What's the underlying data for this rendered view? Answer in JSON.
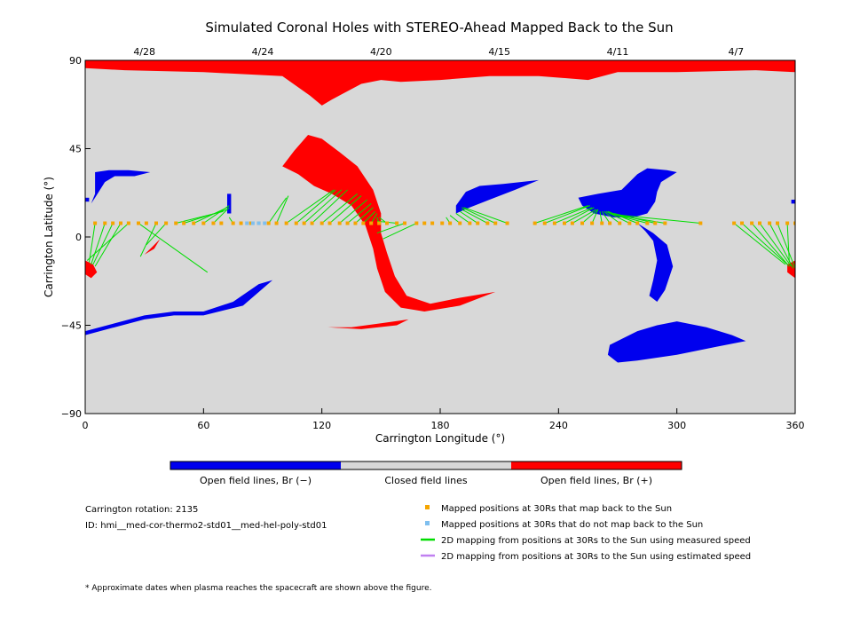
{
  "figure": {
    "title": "Simulated Coronal Holes with STEREO-Ahead Mapped Back to the Sun",
    "footnote": "* Approximate dates when plasma reaches the spacecraft are shown above the figure."
  },
  "colorbar": {
    "labels": [
      "Open field lines, Br (−)",
      "Closed field lines",
      "Open field lines, Br (+)"
    ],
    "colors": [
      "#0000ee",
      "#d8d8d8",
      "#ff0000"
    ]
  },
  "info": {
    "rotation": "Carrington rotation: 2135",
    "id": "ID: hmi__med-cor-thermo2-std01__med-hel-poly-std01"
  },
  "legend": [
    {
      "label": "Mapped positions at 30Rs that map back to the Sun",
      "symbol": "square",
      "color": "#f5a500"
    },
    {
      "label": "Mapped positions at 30Rs that do not map back to the Sun",
      "symbol": "square",
      "color": "#7fbfef"
    },
    {
      "label": "2D mapping from positions at 30Rs to the Sun using measured speed",
      "symbol": "line",
      "color": "#00dd00"
    },
    {
      "label": "2D mapping from positions at 30Rs to the Sun using estimated speed",
      "symbol": "line",
      "color": "#c080f0"
    }
  ],
  "chart_data": {
    "type": "scatter",
    "xlabel": "Carrington Longitude (°)",
    "ylabel": "Carrington Latitude (°)",
    "xlim": [
      0,
      360
    ],
    "ylim": [
      -90,
      90
    ],
    "xticks": [
      "0",
      "60",
      "120",
      "180",
      "240",
      "300",
      "360"
    ],
    "yticks": [
      "90",
      "45",
      "0",
      "−45",
      "−90"
    ],
    "top_axis": {
      "ticks": [
        {
          "label": "4/28",
          "lon": 30
        },
        {
          "label": "4/24",
          "lon": 90
        },
        {
          "label": "4/20",
          "lon": 150
        },
        {
          "label": "4/15",
          "lon": 210
        },
        {
          "label": "4/11",
          "lon": 270
        },
        {
          "label": "4/7",
          "lon": 330
        }
      ]
    },
    "background_color": "#d8d8d8",
    "coronal_holes": [
      {
        "polarity": "+",
        "color": "#ff0000",
        "points": [
          [
            0,
            90
          ],
          [
            360,
            90
          ],
          [
            360,
            84
          ],
          [
            340,
            85
          ],
          [
            300,
            84
          ],
          [
            270,
            84
          ],
          [
            255,
            80
          ],
          [
            230,
            82
          ],
          [
            205,
            82
          ],
          [
            180,
            80
          ],
          [
            160,
            79
          ],
          [
            150,
            80
          ],
          [
            140,
            78
          ],
          [
            125,
            70
          ],
          [
            120,
            67
          ],
          [
            114,
            72
          ],
          [
            100,
            82
          ],
          [
            60,
            84
          ],
          [
            20,
            85
          ],
          [
            0,
            86
          ]
        ]
      },
      {
        "polarity": "+",
        "color": "#ff0000",
        "points": [
          [
            100,
            36
          ],
          [
            106,
            44
          ],
          [
            113,
            52
          ],
          [
            120,
            50
          ],
          [
            128,
            44
          ],
          [
            138,
            36
          ],
          [
            146,
            24
          ],
          [
            150,
            12
          ],
          [
            150,
            2
          ],
          [
            153,
            -8
          ],
          [
            157,
            -20
          ],
          [
            163,
            -30
          ],
          [
            175,
            -34
          ],
          [
            190,
            -31
          ],
          [
            208,
            -28
          ],
          [
            190,
            -35
          ],
          [
            172,
            -38
          ],
          [
            160,
            -36
          ],
          [
            152,
            -28
          ],
          [
            148,
            -16
          ],
          [
            146,
            -6
          ],
          [
            142,
            6
          ],
          [
            135,
            16
          ],
          [
            125,
            22
          ],
          [
            116,
            26
          ],
          [
            108,
            32
          ]
        ]
      },
      {
        "polarity": "+",
        "color": "#ff0000",
        "points": [
          [
            0,
            -12
          ],
          [
            4,
            -14
          ],
          [
            6,
            -18
          ],
          [
            3,
            -21
          ],
          [
            0,
            -19
          ]
        ]
      },
      {
        "polarity": "+",
        "color": "#ff0000",
        "points": [
          [
            356,
            -14
          ],
          [
            360,
            -12
          ],
          [
            360,
            -21
          ],
          [
            356,
            -18
          ]
        ]
      },
      {
        "polarity": "+",
        "color": "#ff0000",
        "points": [
          [
            30,
            -9
          ],
          [
            35,
            -6
          ],
          [
            38,
            -1
          ],
          [
            34,
            -5
          ]
        ]
      },
      {
        "polarity": "+",
        "color": "#ff0000",
        "points": [
          [
            123,
            -46
          ],
          [
            140,
            -47
          ],
          [
            158,
            -45
          ],
          [
            164,
            -42
          ],
          [
            150,
            -44
          ],
          [
            135,
            -46
          ]
        ]
      },
      {
        "polarity": "−",
        "color": "#0000ee",
        "points": [
          [
            5,
            33
          ],
          [
            12,
            34
          ],
          [
            22,
            34
          ],
          [
            33,
            33
          ],
          [
            25,
            31
          ],
          [
            15,
            31
          ],
          [
            10,
            28
          ],
          [
            5,
            20
          ],
          [
            3,
            17
          ],
          [
            5,
            22
          ]
        ]
      },
      {
        "polarity": "−",
        "color": "#0000ee",
        "points": [
          [
            0,
            20
          ],
          [
            2,
            20
          ],
          [
            2,
            18
          ],
          [
            0,
            18
          ]
        ]
      },
      {
        "polarity": "−",
        "color": "#0000ee",
        "points": [
          [
            358,
            19
          ],
          [
            360,
            19
          ],
          [
            360,
            17
          ],
          [
            358,
            17
          ]
        ]
      },
      {
        "polarity": "−",
        "color": "#0000ee",
        "points": [
          [
            188,
            16
          ],
          [
            193,
            23
          ],
          [
            200,
            26
          ],
          [
            212,
            27
          ],
          [
            230,
            29
          ],
          [
            218,
            24
          ],
          [
            205,
            19
          ],
          [
            195,
            15
          ],
          [
            188,
            12
          ]
        ]
      },
      {
        "polarity": "−",
        "color": "#0000ee",
        "points": [
          [
            250,
            20
          ],
          [
            260,
            22
          ],
          [
            272,
            24
          ],
          [
            280,
            32
          ],
          [
            285,
            35
          ],
          [
            295,
            34
          ],
          [
            300,
            33
          ],
          [
            292,
            28
          ],
          [
            290,
            23
          ],
          [
            289,
            18
          ],
          [
            285,
            12
          ],
          [
            278,
            10
          ],
          [
            268,
            10
          ],
          [
            258,
            12
          ],
          [
            252,
            16
          ]
        ]
      },
      {
        "polarity": "−",
        "color": "#0000ee",
        "points": [
          [
            280,
            7
          ],
          [
            288,
            2
          ],
          [
            295,
            -4
          ],
          [
            298,
            -15
          ],
          [
            294,
            -27
          ],
          [
            290,
            -33
          ],
          [
            286,
            -30
          ],
          [
            288,
            -22
          ],
          [
            290,
            -12
          ],
          [
            288,
            -2
          ],
          [
            284,
            3
          ]
        ]
      },
      {
        "polarity": "−",
        "color": "#0000ee",
        "points": [
          [
            266,
            -55
          ],
          [
            280,
            -48
          ],
          [
            290,
            -45
          ],
          [
            300,
            -43
          ],
          [
            315,
            -46
          ],
          [
            328,
            -50
          ],
          [
            335,
            -53
          ],
          [
            320,
            -56
          ],
          [
            300,
            -60
          ],
          [
            280,
            -63
          ],
          [
            270,
            -64
          ],
          [
            265,
            -60
          ]
        ]
      },
      {
        "polarity": "−",
        "color": "#0000ee",
        "points": [
          [
            0,
            -50
          ],
          [
            15,
            -46
          ],
          [
            30,
            -42
          ],
          [
            45,
            -40
          ],
          [
            60,
            -40
          ],
          [
            80,
            -35
          ],
          [
            95,
            -22
          ],
          [
            88,
            -24
          ],
          [
            75,
            -33
          ],
          [
            60,
            -38
          ],
          [
            45,
            -38
          ],
          [
            30,
            -40
          ],
          [
            15,
            -44
          ],
          [
            0,
            -48
          ]
        ]
      },
      {
        "polarity": "−",
        "color": "#0000ee",
        "points": [
          [
            72,
            22
          ],
          [
            74,
            22
          ],
          [
            74,
            12
          ],
          [
            72,
            12
          ]
        ]
      }
    ],
    "mapped_points_lon": [
      5,
      10,
      14,
      18,
      22,
      27,
      31,
      36,
      41,
      46,
      50,
      55,
      60,
      65,
      69,
      75,
      79,
      84,
      88,
      93,
      97,
      102,
      107,
      111,
      115,
      120,
      124,
      129,
      133,
      137,
      141,
      145,
      149,
      153,
      158,
      162,
      168,
      172,
      176,
      181,
      185,
      190,
      195,
      199,
      204,
      208,
      214,
      228,
      233,
      238,
      243,
      247,
      252,
      257,
      262,
      266,
      271,
      276,
      280,
      285,
      289,
      294,
      312,
      329,
      333,
      338,
      342,
      347,
      351,
      356,
      360
    ],
    "unmapped_points_lon": [
      82,
      85,
      88,
      91
    ],
    "mapped_points_lat": 7,
    "mapping_lines_measured": [
      [
        [
          5,
          7
        ],
        [
          2,
          -13
        ]
      ],
      [
        [
          10,
          7
        ],
        [
          3,
          -14
        ]
      ],
      [
        [
          14,
          7
        ],
        [
          4,
          -14
        ]
      ],
      [
        [
          18,
          7
        ],
        [
          5,
          -15
        ]
      ],
      [
        [
          22,
          7
        ],
        [
          1,
          -12
        ]
      ],
      [
        [
          36,
          7
        ],
        [
          28,
          -10
        ]
      ],
      [
        [
          27,
          7
        ],
        [
          62,
          -18
        ]
      ],
      [
        [
          41,
          7
        ],
        [
          31,
          -4
        ]
      ],
      [
        [
          46,
          7
        ],
        [
          70,
          13
        ]
      ],
      [
        [
          50,
          7
        ],
        [
          72,
          14
        ]
      ],
      [
        [
          55,
          7
        ],
        [
          72,
          15
        ]
      ],
      [
        [
          60,
          7
        ],
        [
          73,
          16
        ]
      ],
      [
        [
          65,
          7
        ],
        [
          73,
          15
        ]
      ],
      [
        [
          75,
          7
        ],
        [
          73,
          10
        ]
      ],
      [
        [
          93,
          7
        ],
        [
          102,
          20
        ]
      ],
      [
        [
          97,
          7
        ],
        [
          103,
          21
        ]
      ],
      [
        [
          102,
          7
        ],
        [
          126,
          24
        ]
      ],
      [
        [
          107,
          7
        ],
        [
          127,
          24
        ]
      ],
      [
        [
          111,
          7
        ],
        [
          130,
          24
        ]
      ],
      [
        [
          115,
          7
        ],
        [
          133,
          24
        ]
      ],
      [
        [
          120,
          7
        ],
        [
          138,
          22
        ]
      ],
      [
        [
          124,
          7
        ],
        [
          140,
          21
        ]
      ],
      [
        [
          129,
          7
        ],
        [
          143,
          19
        ]
      ],
      [
        [
          133,
          7
        ],
        [
          145,
          17
        ]
      ],
      [
        [
          137,
          7
        ],
        [
          146,
          15
        ]
      ],
      [
        [
          141,
          7
        ],
        [
          147,
          13
        ]
      ],
      [
        [
          145,
          7
        ],
        [
          148,
          12
        ]
      ],
      [
        [
          149,
          7
        ],
        [
          148,
          10
        ]
      ],
      [
        [
          153,
          7
        ],
        [
          149,
          10
        ]
      ],
      [
        [
          158,
          7
        ],
        [
          148,
          8
        ]
      ],
      [
        [
          162,
          7
        ],
        [
          148,
          2
        ]
      ],
      [
        [
          168,
          7
        ],
        [
          151,
          -1
        ]
      ],
      [
        [
          185,
          7
        ],
        [
          183,
          10
        ]
      ],
      [
        [
          190,
          7
        ],
        [
          185,
          11
        ]
      ],
      [
        [
          195,
          7
        ],
        [
          188,
          12
        ]
      ],
      [
        [
          199,
          7
        ],
        [
          190,
          13
        ]
      ],
      [
        [
          204,
          7
        ],
        [
          191,
          14
        ]
      ],
      [
        [
          208,
          7
        ],
        [
          191,
          15
        ]
      ],
      [
        [
          214,
          7
        ],
        [
          192,
          15
        ]
      ],
      [
        [
          228,
          7
        ],
        [
          255,
          16
        ]
      ],
      [
        [
          233,
          7
        ],
        [
          256,
          16
        ]
      ],
      [
        [
          238,
          7
        ],
        [
          257,
          15
        ]
      ],
      [
        [
          243,
          7
        ],
        [
          258,
          15
        ]
      ],
      [
        [
          247,
          7
        ],
        [
          259,
          14
        ]
      ],
      [
        [
          252,
          7
        ],
        [
          260,
          14
        ]
      ],
      [
        [
          257,
          7
        ],
        [
          260,
          14
        ]
      ],
      [
        [
          262,
          7
        ],
        [
          261,
          13
        ]
      ],
      [
        [
          266,
          7
        ],
        [
          262,
          13
        ]
      ],
      [
        [
          271,
          7
        ],
        [
          263,
          13
        ]
      ],
      [
        [
          276,
          7
        ],
        [
          264,
          13
        ]
      ],
      [
        [
          280,
          7
        ],
        [
          265,
          13
        ]
      ],
      [
        [
          285,
          7
        ],
        [
          266,
          12
        ]
      ],
      [
        [
          289,
          7
        ],
        [
          268,
          12
        ]
      ],
      [
        [
          294,
          7
        ],
        [
          270,
          11
        ]
      ],
      [
        [
          312,
          7
        ],
        [
          272,
          11
        ]
      ],
      [
        [
          329,
          7
        ],
        [
          355,
          -14
        ]
      ],
      [
        [
          333,
          7
        ],
        [
          356,
          -14
        ]
      ],
      [
        [
          338,
          7
        ],
        [
          357,
          -15
        ]
      ],
      [
        [
          342,
          7
        ],
        [
          358,
          -15
        ]
      ],
      [
        [
          347,
          7
        ],
        [
          359,
          -16
        ]
      ],
      [
        [
          351,
          7
        ],
        [
          360,
          -16
        ]
      ],
      [
        [
          356,
          7
        ],
        [
          357,
          -13
        ]
      ]
    ],
    "mapping_lines_estimated": []
  }
}
